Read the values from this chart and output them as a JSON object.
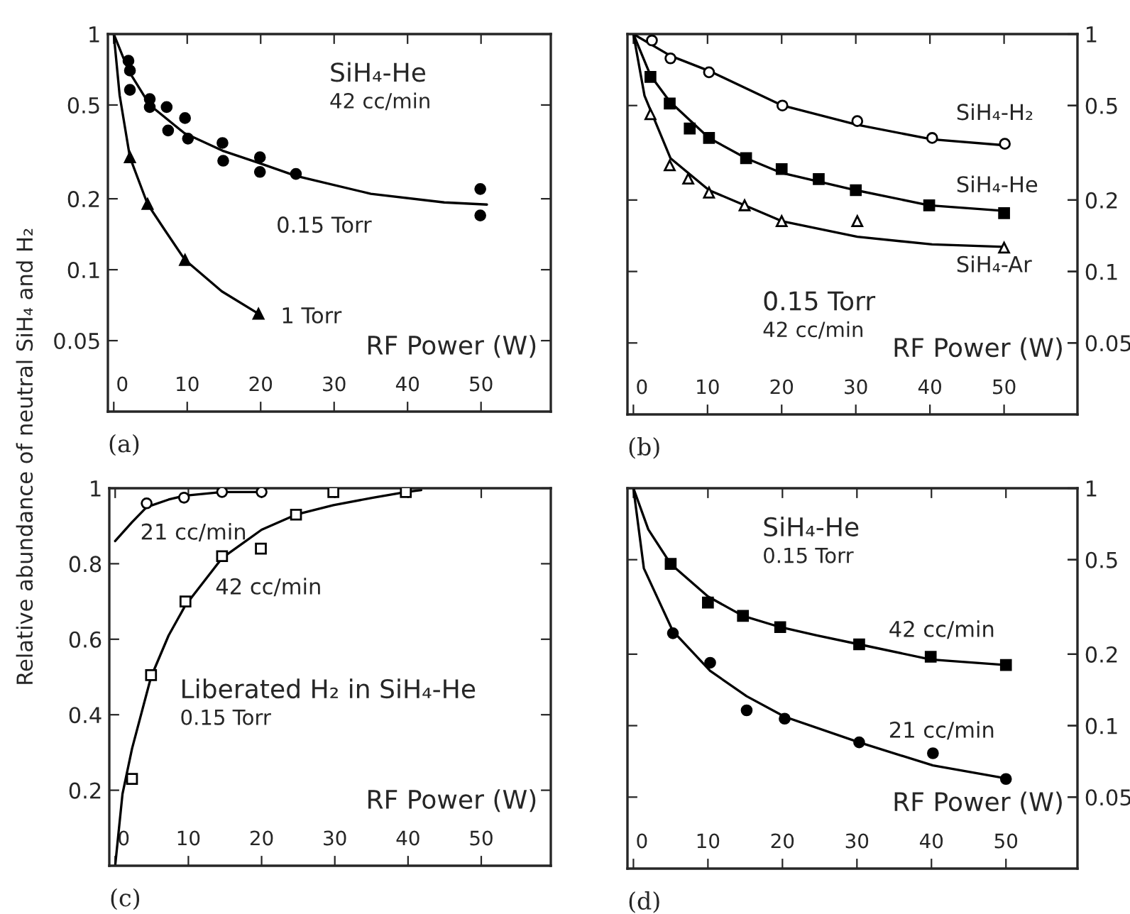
{
  "chart_data": [
    {
      "type": "line",
      "title": "SiH₄-He",
      "subtitle": "42 cc/min",
      "xlabel": "RF Power (W)",
      "ylabel": "Relative abundance of neutral SiH₄ and H₂",
      "log": "y",
      "xlim": [
        -0.8,
        59.5
      ],
      "xticks": [
        0,
        10,
        20,
        30,
        40,
        50
      ],
      "ylim": [
        0.025,
        1
      ],
      "yticks": [
        0.05,
        0.1,
        0.2,
        0.5,
        1
      ],
      "series": [
        {
          "type": "scatter",
          "marker": "circle",
          "color": "#000000",
          "x": [
            2.0,
            2.2,
            2.2,
            4.9,
            4.9,
            7.2,
            7.4,
            9.7,
            10.1,
            14.8,
            14.9,
            19.9,
            19.9,
            24.8,
            49.9,
            49.9
          ],
          "values": [
            0.77,
            0.7,
            0.58,
            0.53,
            0.49,
            0.49,
            0.39,
            0.44,
            0.36,
            0.345,
            0.29,
            0.3,
            0.26,
            0.255,
            0.22,
            0.17
          ]
        },
        {
          "type": "line",
          "color": "#000000",
          "x": [
            0,
            2,
            4.9,
            9.6,
            14.8,
            19.9,
            24.8,
            35,
            45,
            50.8
          ],
          "values": [
            1,
            0.7,
            0.5,
            0.38,
            0.32,
            0.283,
            0.25,
            0.21,
            0.193,
            0.189
          ]
        },
        {
          "type": "scatter",
          "marker": "triangle",
          "color": "#000000",
          "x": [
            2.2,
            4.6,
            9.7,
            19.7
          ],
          "values": [
            0.3,
            0.19,
            0.11,
            0.065
          ]
        },
        {
          "type": "line",
          "color": "#000000",
          "x": [
            0,
            0.8,
            2.2,
            4.6,
            7.1,
            9.7,
            14.7,
            19.7
          ],
          "values": [
            1,
            0.55,
            0.3,
            0.19,
            0.145,
            0.11,
            0.081,
            0.065
          ]
        }
      ],
      "annotations": [
        "0.15 Torr",
        "1 Torr",
        "(a)"
      ]
    },
    {
      "type": "line",
      "title": "0.15 Torr",
      "subtitle": "42 cc/min",
      "xlabel": "RF Power (W)",
      "log": "y2",
      "xlim": [
        -0.8,
        59.9
      ],
      "xticks": [
        0,
        10,
        20,
        30,
        40,
        50
      ],
      "y2lim": [
        0.025,
        1
      ],
      "y2ticks": [
        0.05,
        0.1,
        0.2,
        0.5,
        1
      ],
      "series": [
        {
          "type": "scatter",
          "axis": "y2",
          "marker": "circle",
          "color": "#ffffff",
          "x": [
            2.5,
            5.0,
            10.2,
            20.1,
            30.2,
            40.3,
            50.1
          ],
          "values": [
            0.94,
            0.79,
            0.69,
            0.5,
            0.43,
            0.365,
            0.345
          ]
        },
        {
          "type": "line",
          "axis": "y2",
          "color": "#000000",
          "x": [
            0,
            5.0,
            10.2,
            20.1,
            30.2,
            40.3,
            50.1
          ],
          "values": [
            1,
            0.81,
            0.7,
            0.5,
            0.415,
            0.36,
            0.34
          ]
        },
        {
          "type": "scatter",
          "axis": "y2",
          "marker": "square",
          "color": "#000000",
          "x": [
            2.3,
            4.9,
            7.6,
            10.2,
            15.2,
            20,
            25,
            30,
            39.9,
            50
          ],
          "values": [
            0.66,
            0.51,
            0.4,
            0.365,
            0.3,
            0.27,
            0.245,
            0.22,
            0.19,
            0.176
          ]
        },
        {
          "type": "line",
          "axis": "y2",
          "color": "#000000",
          "x": [
            0,
            2.3,
            4.9,
            10.2,
            15.2,
            20,
            30,
            39.9,
            50
          ],
          "values": [
            1,
            0.67,
            0.52,
            0.365,
            0.3,
            0.26,
            0.22,
            0.19,
            0.18
          ]
        },
        {
          "type": "scatter",
          "axis": "y2",
          "marker": "triangle",
          "color": "#ffffff",
          "x": [
            2.3,
            4.9,
            7.4,
            10.2,
            15,
            20,
            30.2,
            50
          ],
          "values": [
            0.46,
            0.28,
            0.246,
            0.215,
            0.19,
            0.163,
            0.163,
            0.126
          ]
        },
        {
          "type": "line",
          "axis": "y2",
          "color": "#000000",
          "x": [
            0,
            1.5,
            5,
            10.2,
            15,
            20,
            30.2,
            40.3,
            50
          ],
          "values": [
            1,
            0.55,
            0.3,
            0.22,
            0.19,
            0.163,
            0.14,
            0.13,
            0.127
          ]
        }
      ],
      "annotations": [
        "SiH₄-H₂",
        "SiH₄-He",
        "SiH₄-Ar",
        "(b)"
      ]
    },
    {
      "type": "line",
      "title": "Liberated H₂ in SiH₄-He",
      "subtitle": "0.15 Torr",
      "xlabel": "RF Power (W)",
      "xlim": [
        -0.8,
        59.5
      ],
      "xticks": [
        0,
        10,
        20,
        30,
        40,
        50
      ],
      "ylim": [
        0,
        1
      ],
      "yticks": [
        {
          "value": 0.2,
          "label": "0.2"
        },
        {
          "value": 0.4,
          "label": "0.4"
        },
        {
          "value": 0.6,
          "label": "0.6"
        },
        {
          "value": 0.8,
          "label": "0.8"
        },
        {
          "value": 1,
          "label": "1"
        }
      ],
      "series": [
        {
          "type": "scatter",
          "marker": "circle",
          "color": "#ffffff",
          "x": [
            4.3,
            9.4,
            14.6,
            20
          ],
          "values": [
            0.96,
            0.975,
            0.99,
            0.99
          ]
        },
        {
          "type": "line",
          "color": "#000000",
          "x": [
            0,
            2.3,
            4.3,
            7.3,
            9.4,
            14.6,
            20
          ],
          "values": [
            0.86,
            0.91,
            0.95,
            0.97,
            0.98,
            0.99,
            0.99
          ]
        },
        {
          "type": "scatter",
          "marker": "square",
          "color": "#ffffff",
          "x": [
            2.3,
            4.9,
            9.6,
            14.6,
            19.9,
            24.7,
            29.8,
            39.7
          ],
          "values": [
            0.23,
            0.505,
            0.7,
            0.82,
            0.84,
            0.93,
            0.99,
            0.99
          ]
        },
        {
          "type": "line",
          "color": "#000000",
          "x": [
            0,
            1,
            2.3,
            4.9,
            7.3,
            9.6,
            14.6,
            20,
            24.7,
            29.8,
            35.2,
            39.7,
            41.8
          ],
          "values": [
            0,
            0.19,
            0.31,
            0.5,
            0.61,
            0.69,
            0.815,
            0.89,
            0.93,
            0.955,
            0.975,
            0.99,
            0.995
          ]
        }
      ],
      "annotations": [
        "21 cc/min",
        "42 cc/min",
        "(c)"
      ]
    },
    {
      "type": "line",
      "title": "SiH₄-He",
      "subtitle": "0.15 Torr",
      "xlabel": "RF Power (W)",
      "log": "y2",
      "xlim": [
        -0.8,
        59.6
      ],
      "xticks": [
        0,
        10,
        20,
        30,
        40,
        50
      ],
      "y2lim": [
        0.025,
        1
      ],
      "y2ticks": [
        0.05,
        0.1,
        0.2,
        0.5,
        1
      ],
      "series": [
        {
          "type": "scatter",
          "axis": "y2",
          "marker": "square",
          "color": "#000000",
          "x": [
            5.0,
            10,
            14.7,
            19.7,
            30.3,
            39.9,
            50
          ],
          "values": [
            0.48,
            0.33,
            0.29,
            0.26,
            0.22,
            0.195,
            0.18
          ]
        },
        {
          "type": "line",
          "axis": "y2",
          "color": "#000000",
          "x": [
            0,
            2,
            5.0,
            10,
            14.7,
            19.7,
            24.6,
            30.3,
            39.9,
            50
          ],
          "values": [
            1,
            0.67,
            0.48,
            0.35,
            0.29,
            0.26,
            0.24,
            0.22,
            0.19,
            0.18
          ]
        },
        {
          "type": "scatter",
          "axis": "y2",
          "marker": "circle",
          "color": "#000000",
          "x": [
            5.3,
            10.3,
            15.2,
            20.3,
            30.3,
            40.2,
            50
          ],
          "values": [
            0.245,
            0.184,
            0.116,
            0.107,
            0.085,
            0.0765,
            0.0596
          ]
        },
        {
          "type": "line",
          "axis": "y2",
          "color": "#000000",
          "x": [
            0,
            1.4,
            5.3,
            10.3,
            15.2,
            20.3,
            30.3,
            40.2,
            50
          ],
          "values": [
            1,
            0.46,
            0.25,
            0.17,
            0.133,
            0.109,
            0.085,
            0.068,
            0.06
          ]
        }
      ],
      "annotations": [
        "42 cc/min",
        "21 cc/min",
        "(d)"
      ]
    }
  ]
}
